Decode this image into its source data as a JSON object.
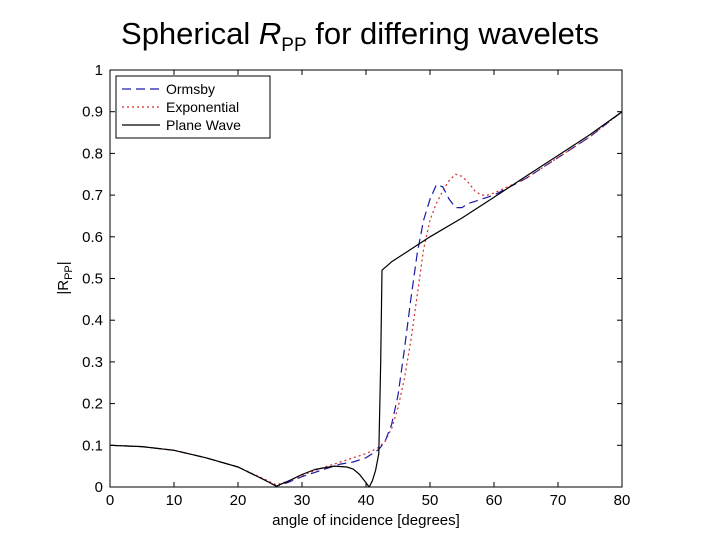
{
  "title": {
    "prefix": "Spherical ",
    "symbol": "R",
    "subscript": "PP",
    "suffix": " for differing wavelets"
  },
  "chart_data": {
    "type": "line",
    "title": "Spherical RPP for differing wavelets",
    "xlabel": "angle of incidence [degrees]",
    "ylabel_main": "|R",
    "ylabel_sub": "PP",
    "ylabel_end": "|",
    "xlim": [
      0,
      80
    ],
    "ylim": [
      0,
      1
    ],
    "xticks": [
      "0",
      "10",
      "20",
      "30",
      "40",
      "50",
      "60",
      "70",
      "80"
    ],
    "yticks": [
      "0",
      "0.1",
      "0.2",
      "0.3",
      "0.4",
      "0.5",
      "0.6",
      "0.7",
      "0.8",
      "0.9",
      "1"
    ],
    "grid": false,
    "legend_position": "top-left",
    "series": [
      {
        "name": "Ormsby",
        "color": "#1a1aa6",
        "style": "dashed",
        "points": [
          [
            0,
            0.1
          ],
          [
            5,
            0.097
          ],
          [
            10,
            0.088
          ],
          [
            15,
            0.07
          ],
          [
            20,
            0.048
          ],
          [
            24,
            0.018
          ],
          [
            26,
            0.002
          ],
          [
            28,
            0.012
          ],
          [
            30,
            0.025
          ],
          [
            33,
            0.04
          ],
          [
            36,
            0.055
          ],
          [
            38,
            0.06
          ],
          [
            40,
            0.07
          ],
          [
            41,
            0.08
          ],
          [
            42,
            0.09
          ],
          [
            43,
            0.11
          ],
          [
            44,
            0.15
          ],
          [
            45,
            0.22
          ],
          [
            46,
            0.33
          ],
          [
            47,
            0.45
          ],
          [
            48,
            0.56
          ],
          [
            49,
            0.64
          ],
          [
            50,
            0.69
          ],
          [
            51,
            0.725
          ],
          [
            52,
            0.72
          ],
          [
            53,
            0.69
          ],
          [
            54,
            0.67
          ],
          [
            55,
            0.67
          ],
          [
            56,
            0.68
          ],
          [
            57,
            0.685
          ],
          [
            58,
            0.69
          ],
          [
            60,
            0.7
          ],
          [
            65,
            0.74
          ],
          [
            70,
            0.79
          ],
          [
            75,
            0.84
          ],
          [
            80,
            0.9
          ]
        ]
      },
      {
        "name": "Exponential",
        "color": "#d42a2a",
        "style": "dotted",
        "points": [
          [
            0,
            0.1
          ],
          [
            5,
            0.097
          ],
          [
            10,
            0.088
          ],
          [
            15,
            0.07
          ],
          [
            20,
            0.048
          ],
          [
            24,
            0.02
          ],
          [
            26,
            0.005
          ],
          [
            28,
            0.015
          ],
          [
            30,
            0.028
          ],
          [
            33,
            0.045
          ],
          [
            36,
            0.06
          ],
          [
            38,
            0.07
          ],
          [
            40,
            0.08
          ],
          [
            42,
            0.095
          ],
          [
            43,
            0.11
          ],
          [
            44,
            0.14
          ],
          [
            45,
            0.19
          ],
          [
            46,
            0.26
          ],
          [
            47,
            0.35
          ],
          [
            48,
            0.46
          ],
          [
            49,
            0.57
          ],
          [
            50,
            0.64
          ],
          [
            51,
            0.68
          ],
          [
            52,
            0.71
          ],
          [
            53,
            0.735
          ],
          [
            54,
            0.75
          ],
          [
            55,
            0.745
          ],
          [
            56,
            0.73
          ],
          [
            57,
            0.71
          ],
          [
            58,
            0.7
          ],
          [
            59,
            0.7
          ],
          [
            60,
            0.705
          ],
          [
            65,
            0.74
          ],
          [
            70,
            0.79
          ],
          [
            75,
            0.84
          ],
          [
            80,
            0.9
          ]
        ]
      },
      {
        "name": "Plane Wave",
        "color": "#000000",
        "style": "solid",
        "points": [
          [
            0,
            0.1
          ],
          [
            5,
            0.097
          ],
          [
            10,
            0.088
          ],
          [
            15,
            0.07
          ],
          [
            20,
            0.048
          ],
          [
            24,
            0.018
          ],
          [
            26,
            0.002
          ],
          [
            28,
            0.015
          ],
          [
            30,
            0.03
          ],
          [
            32,
            0.042
          ],
          [
            35,
            0.05
          ],
          [
            37,
            0.048
          ],
          [
            38,
            0.043
          ],
          [
            39,
            0.03
          ],
          [
            40,
            0.01
          ],
          [
            40.5,
            0.0
          ],
          [
            41,
            0.015
          ],
          [
            41.5,
            0.04
          ],
          [
            42,
            0.08
          ],
          [
            42.3,
            0.3
          ],
          [
            42.5,
            0.52
          ],
          [
            44,
            0.54
          ],
          [
            46,
            0.56
          ],
          [
            48,
            0.58
          ],
          [
            50,
            0.6
          ],
          [
            55,
            0.645
          ],
          [
            60,
            0.695
          ],
          [
            65,
            0.745
          ],
          [
            70,
            0.795
          ],
          [
            75,
            0.845
          ],
          [
            80,
            0.9
          ]
        ]
      }
    ]
  }
}
